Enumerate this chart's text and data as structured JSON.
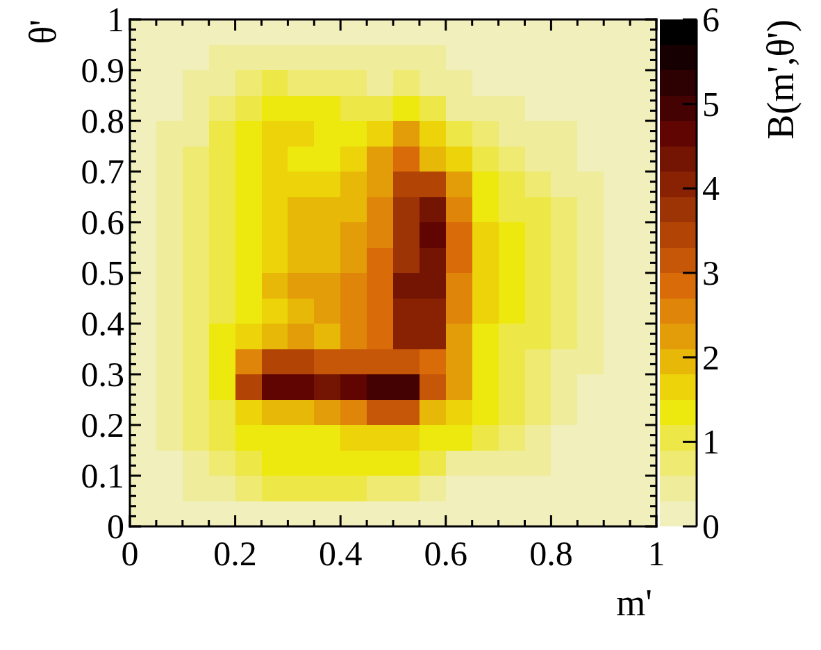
{
  "chart_data": {
    "type": "heatmap",
    "xlabel": "m'",
    "ylabel": "θ'",
    "clabel": "B(m',θ')",
    "x": [
      0.025,
      0.075,
      0.125,
      0.175,
      0.225,
      0.275,
      0.325,
      0.375,
      0.425,
      0.475,
      0.525,
      0.575,
      0.625,
      0.675,
      0.725,
      0.775,
      0.825,
      0.875,
      0.925,
      0.975
    ],
    "y": [
      0.975,
      0.925,
      0.875,
      0.825,
      0.775,
      0.725,
      0.675,
      0.625,
      0.575,
      0.525,
      0.475,
      0.425,
      0.375,
      0.325,
      0.275,
      0.225,
      0.175,
      0.125,
      0.075,
      0.025
    ],
    "xlim": [
      0,
      1
    ],
    "ylim": [
      0,
      1
    ],
    "xticks": [
      0,
      {
        "value": 0.05,
        "label": null
      },
      {
        "value": 0.1,
        "label": null
      },
      {
        "value": 0.15,
        "label": null
      },
      0.2,
      {
        "value": 0.25,
        "label": null
      },
      {
        "value": 0.3,
        "label": null
      },
      {
        "value": 0.35,
        "label": null
      },
      0.4,
      {
        "value": 0.45,
        "label": null
      },
      {
        "value": 0.5,
        "label": null
      },
      {
        "value": 0.55,
        "label": null
      },
      0.6,
      {
        "value": 0.65,
        "label": null
      },
      {
        "value": 0.7,
        "label": null
      },
      {
        "value": 0.75,
        "label": null
      },
      0.8,
      {
        "value": 0.85,
        "label": null
      },
      {
        "value": 0.9,
        "label": null
      },
      {
        "value": 0.95,
        "label": null
      },
      1
    ],
    "yticks": [
      0,
      {
        "value": 0.02,
        "label": null
      },
      {
        "value": 0.04,
        "label": null
      },
      {
        "value": 0.06,
        "label": null
      },
      {
        "value": 0.08,
        "label": null
      },
      0.1,
      {
        "value": 0.12,
        "label": null
      },
      {
        "value": 0.14,
        "label": null
      },
      {
        "value": 0.16,
        "label": null
      },
      {
        "value": 0.18,
        "label": null
      },
      0.2,
      {
        "value": 0.22,
        "label": null
      },
      {
        "value": 0.24,
        "label": null
      },
      {
        "value": 0.26,
        "label": null
      },
      {
        "value": 0.28,
        "label": null
      },
      0.3,
      {
        "value": 0.32,
        "label": null
      },
      {
        "value": 0.34,
        "label": null
      },
      {
        "value": 0.36,
        "label": null
      },
      {
        "value": 0.38,
        "label": null
      },
      0.4,
      {
        "value": 0.42,
        "label": null
      },
      {
        "value": 0.44,
        "label": null
      },
      {
        "value": 0.46,
        "label": null
      },
      {
        "value": 0.48,
        "label": null
      },
      0.5,
      {
        "value": 0.52,
        "label": null
      },
      {
        "value": 0.54,
        "label": null
      },
      {
        "value": 0.56,
        "label": null
      },
      {
        "value": 0.58,
        "label": null
      },
      0.6,
      {
        "value": 0.62,
        "label": null
      },
      {
        "value": 0.64,
        "label": null
      },
      {
        "value": 0.66,
        "label": null
      },
      {
        "value": 0.68,
        "label": null
      },
      0.7,
      {
        "value": 0.72,
        "label": null
      },
      {
        "value": 0.74,
        "label": null
      },
      {
        "value": 0.76,
        "label": null
      },
      {
        "value": 0.78,
        "label": null
      },
      0.8,
      {
        "value": 0.82,
        "label": null
      },
      {
        "value": 0.84,
        "label": null
      },
      {
        "value": 0.86,
        "label": null
      },
      {
        "value": 0.88,
        "label": null
      },
      0.9,
      {
        "value": 0.92,
        "label": null
      },
      {
        "value": 0.94,
        "label": null
      },
      {
        "value": 0.96,
        "label": null
      },
      {
        "value": 0.98,
        "label": null
      },
      1
    ],
    "clim": [
      0,
      6
    ],
    "cticks": [
      0,
      1,
      2,
      3,
      4,
      5,
      6
    ],
    "cells": [
      [
        0.1,
        0.1,
        0.2,
        0.2,
        0.2,
        0.2,
        0.2,
        0.2,
        0.2,
        0.2,
        0.2,
        0.2,
        0.2,
        0.2,
        0.2,
        0.2,
        0.2,
        0.1,
        0.1,
        0.1
      ],
      [
        0.1,
        0.1,
        0.2,
        0.3,
        0.3,
        0.4,
        0.5,
        0.4,
        0.4,
        0.3,
        0.3,
        0.3,
        0.2,
        0.2,
        0.2,
        0.2,
        0.2,
        0.1,
        0.1,
        0.1
      ],
      [
        0.1,
        0.2,
        0.4,
        0.5,
        0.7,
        0.9,
        0.8,
        0.8,
        0.6,
        0.5,
        0.7,
        0.4,
        0.3,
        0.2,
        0.2,
        0.2,
        0.2,
        0.1,
        0.1,
        0.1
      ],
      [
        0.1,
        0.2,
        0.4,
        0.8,
        1.0,
        1.3,
        1.4,
        1.2,
        1.1,
        1.0,
        1.3,
        0.9,
        0.4,
        0.3,
        0.3,
        0.2,
        0.2,
        0.2,
        0.2,
        0.1
      ],
      [
        0.1,
        0.3,
        0.5,
        0.9,
        1.2,
        1.6,
        1.7,
        1.4,
        1.3,
        1.7,
        2.2,
        1.6,
        1.0,
        0.7,
        0.5,
        0.4,
        0.3,
        0.2,
        0.2,
        0.1
      ],
      [
        0.1,
        0.3,
        0.6,
        0.9,
        1.3,
        1.6,
        1.4,
        1.4,
        1.7,
        2.2,
        2.8,
        2.0,
        1.5,
        1.0,
        0.8,
        0.5,
        0.3,
        0.2,
        0.2,
        0.1
      ],
      [
        0.1,
        0.3,
        0.6,
        1.0,
        1.3,
        1.7,
        1.7,
        1.7,
        1.9,
        2.3,
        3.3,
        3.4,
        2.1,
        1.3,
        1.0,
        0.8,
        0.5,
        0.3,
        0.2,
        0.1
      ],
      [
        0.1,
        0.3,
        0.6,
        1.0,
        1.3,
        1.7,
        1.9,
        2.0,
        2.0,
        2.4,
        3.7,
        4.2,
        2.6,
        1.4,
        1.1,
        0.9,
        0.6,
        0.3,
        0.2,
        0.1
      ],
      [
        0.1,
        0.3,
        0.6,
        1.0,
        1.3,
        1.7,
        1.9,
        2.0,
        2.1,
        2.6,
        3.6,
        4.6,
        2.9,
        1.6,
        1.3,
        1.0,
        0.7,
        0.3,
        0.2,
        0.1
      ],
      [
        0.1,
        0.3,
        0.6,
        1.0,
        1.4,
        1.7,
        1.9,
        2.0,
        2.2,
        2.8,
        3.7,
        4.3,
        2.8,
        1.6,
        1.3,
        1.0,
        0.7,
        0.3,
        0.2,
        0.1
      ],
      [
        0.1,
        0.3,
        0.6,
        1.0,
        1.4,
        1.9,
        2.1,
        2.3,
        2.4,
        2.9,
        4.3,
        4.2,
        2.6,
        1.6,
        1.3,
        1.0,
        0.6,
        0.3,
        0.2,
        0.1
      ],
      [
        0.1,
        0.3,
        0.6,
        1.0,
        1.4,
        1.7,
        2.0,
        2.2,
        2.4,
        2.7,
        3.9,
        4.0,
        2.5,
        1.5,
        1.2,
        0.9,
        0.6,
        0.3,
        0.2,
        0.1
      ],
      [
        0.1,
        0.3,
        0.6,
        1.3,
        1.6,
        1.9,
        2.2,
        2.0,
        2.4,
        2.8,
        4.0,
        3.9,
        2.3,
        1.4,
        1.1,
        0.9,
        0.6,
        0.3,
        0.2,
        0.1
      ],
      [
        0.1,
        0.3,
        0.7,
        1.3,
        2.4,
        3.4,
        3.5,
        3.2,
        3.0,
        3.1,
        3.2,
        2.9,
        2.1,
        1.3,
        1.1,
        0.8,
        0.5,
        0.3,
        0.2,
        0.1
      ],
      [
        0.1,
        0.3,
        0.7,
        1.4,
        3.4,
        4.6,
        4.7,
        4.3,
        4.5,
        4.8,
        5.0,
        3.1,
        2.2,
        1.3,
        1.0,
        0.7,
        0.4,
        0.2,
        0.2,
        0.1
      ],
      [
        0.1,
        0.3,
        0.6,
        1.1,
        1.7,
        1.8,
        1.9,
        2.2,
        2.6,
        3.0,
        3.1,
        2.0,
        1.6,
        1.3,
        1.0,
        0.7,
        0.3,
        0.2,
        0.2,
        0.1
      ],
      [
        0.1,
        0.3,
        0.6,
        1.0,
        1.3,
        1.4,
        1.4,
        1.4,
        1.5,
        1.5,
        1.5,
        1.4,
        1.3,
        1.0,
        0.7,
        0.5,
        0.2,
        0.2,
        0.2,
        0.1
      ],
      [
        0.1,
        0.2,
        0.4,
        0.8,
        1.1,
        1.3,
        1.3,
        1.3,
        1.3,
        1.3,
        1.2,
        0.9,
        0.4,
        0.3,
        0.4,
        0.3,
        0.2,
        0.2,
        0.1,
        0.1
      ],
      [
        0.1,
        0.2,
        0.3,
        0.5,
        0.7,
        0.9,
        1.0,
        1.0,
        0.9,
        0.8,
        0.6,
        0.4,
        0.2,
        0.2,
        0.2,
        0.2,
        0.2,
        0.1,
        0.1,
        0.1
      ],
      [
        0.1,
        0.1,
        0.2,
        0.2,
        0.2,
        0.2,
        0.2,
        0.2,
        0.2,
        0.2,
        0.2,
        0.2,
        0.2,
        0.2,
        0.1,
        0.1,
        0.1,
        0.1,
        0.1,
        0.1
      ]
    ]
  }
}
